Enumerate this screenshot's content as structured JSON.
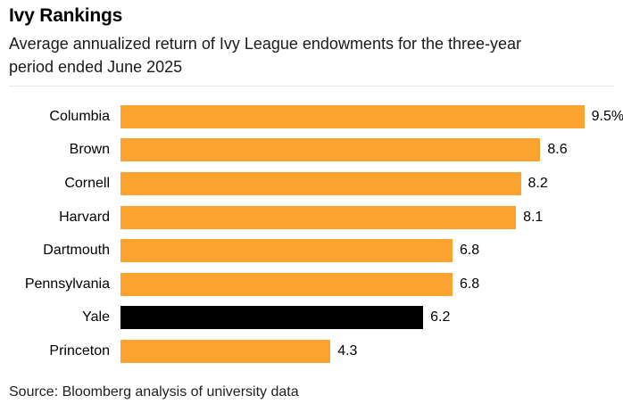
{
  "header": {
    "title": "Ivy Rankings",
    "subtitle": "Average annualized return of Ivy League endowments for the three-year period ended June 2025"
  },
  "footer": {
    "source": "Source: Bloomberg analysis of university data"
  },
  "colors": {
    "bar_default": "#FBA32E",
    "bar_highlight": "#000000",
    "top_rule": "#e6e6e6"
  },
  "chart_data": {
    "type": "bar",
    "orientation": "horizontal",
    "title": "Ivy Rankings",
    "subtitle": "Average annualized return of Ivy League endowments for the three-year period ended June 2025",
    "categories": [
      "Columbia",
      "Brown",
      "Cornell",
      "Harvard",
      "Dartmouth",
      "Pennsylvania",
      "Yale",
      "Princeton"
    ],
    "values": [
      9.5,
      8.6,
      8.2,
      8.1,
      6.8,
      6.8,
      6.2,
      4.3
    ],
    "value_labels": [
      "9.5%",
      "8.6",
      "8.2",
      "8.1",
      "6.8",
      "6.8",
      "6.2",
      "4.3"
    ],
    "bar_colors": [
      "#FBA32E",
      "#FBA32E",
      "#FBA32E",
      "#FBA32E",
      "#FBA32E",
      "#FBA32E",
      "#000000",
      "#FBA32E"
    ],
    "highlighted_category": "Yale",
    "unit": "percent",
    "xlim": [
      0,
      10.3
    ],
    "grid": false,
    "legend": false,
    "source": "Source: Bloomberg analysis of university data"
  }
}
